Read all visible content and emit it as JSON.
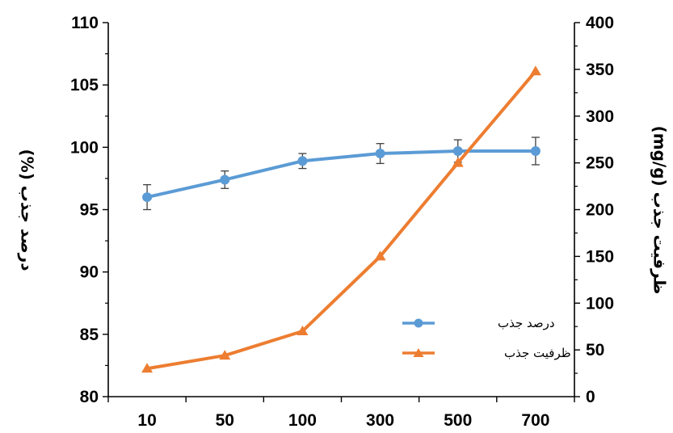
{
  "chart_data": {
    "type": "line",
    "categories": [
      "10",
      "50",
      "100",
      "300",
      "500",
      "700"
    ],
    "ylabel_left": "درصد جذب (%)",
    "ylabel_right": "ظرفیت جذب (mg/g)",
    "y_left": {
      "ylim": [
        80,
        110
      ],
      "ticks": [
        "80",
        "85",
        "90",
        "95",
        "100",
        "105",
        "110"
      ]
    },
    "y_right": {
      "ylim": [
        0,
        400
      ],
      "ticks": [
        "0",
        "50",
        "100",
        "150",
        "200",
        "250",
        "300",
        "350",
        "400"
      ]
    },
    "series": [
      {
        "name": "درصد جذب",
        "axis": "left",
        "marker": "circle",
        "color": "#5B9BD5",
        "values": [
          96.0,
          97.4,
          98.9,
          99.5,
          99.7,
          99.7
        ],
        "error": [
          1.0,
          0.7,
          0.6,
          0.8,
          0.9,
          1.1
        ]
      },
      {
        "name": "ظرفیت جذب",
        "axis": "right",
        "marker": "triangle",
        "color": "#ED7D31",
        "values": [
          30,
          44,
          70,
          150,
          250,
          348
        ]
      }
    ],
    "legend_position": "bottom-right",
    "grid": false
  }
}
